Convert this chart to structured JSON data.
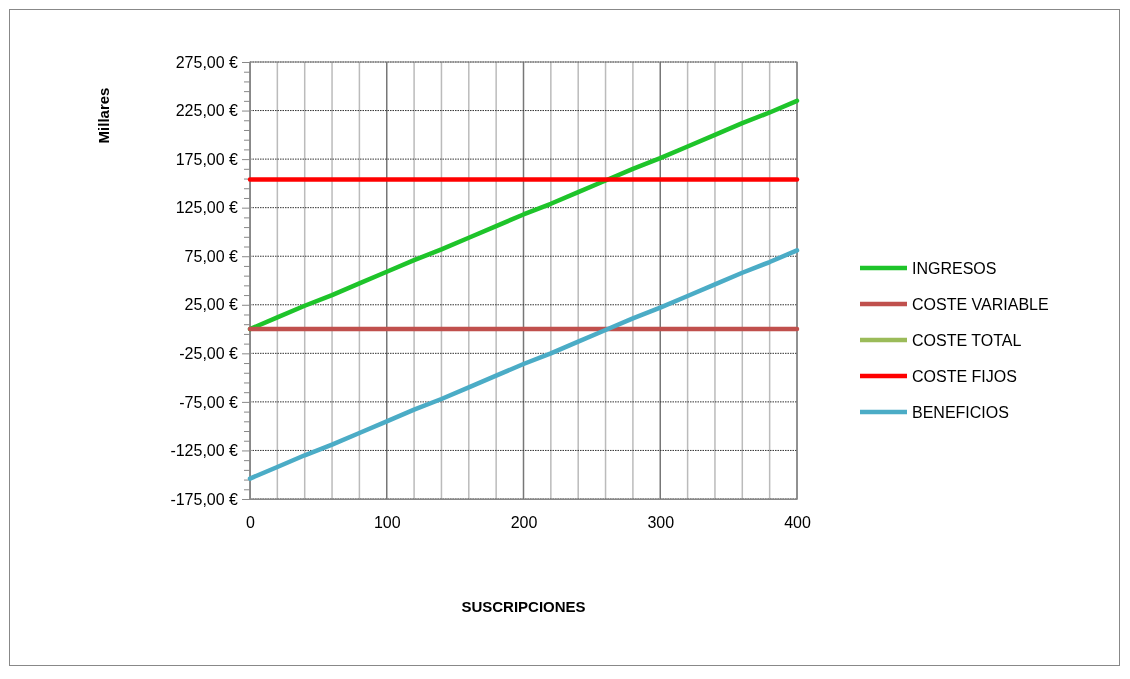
{
  "chart_data": {
    "type": "line",
    "xlabel": "SUSCRIPCIONES",
    "ylabel": "Millares",
    "x": [
      0,
      20,
      40,
      60,
      80,
      100,
      120,
      140,
      160,
      180,
      200,
      220,
      240,
      260,
      280,
      300,
      320,
      340,
      360,
      380,
      400
    ],
    "series": [
      {
        "name": "INGRESOS",
        "color": "#1ec42a",
        "values": [
          0,
          12,
          24,
          35,
          47,
          59,
          71,
          82,
          94,
          106,
          118,
          129,
          141,
          153,
          165,
          176,
          188,
          200,
          212,
          223,
          235
        ]
      },
      {
        "name": "COSTE VARIABLE",
        "color": "#c0504d",
        "values": [
          0,
          0,
          0,
          0,
          0,
          0,
          0,
          0,
          0,
          0,
          0,
          0,
          0,
          0,
          0,
          0,
          0,
          0,
          0,
          0,
          0
        ]
      },
      {
        "name": "COSTE TOTAL",
        "color": "#9bbb59",
        "values": [
          null,
          null,
          null,
          null,
          null,
          null,
          null,
          null,
          null,
          null,
          null,
          null,
          null,
          null,
          null,
          null,
          null,
          null,
          null,
          null,
          null
        ]
      },
      {
        "name": "COSTE FIJOS",
        "color": "#ff0000",
        "values": [
          154,
          154,
          154,
          154,
          154,
          154,
          154,
          154,
          154,
          154,
          154,
          154,
          154,
          154,
          154,
          154,
          154,
          154,
          154,
          154,
          154
        ]
      },
      {
        "name": "BENEFICIOS",
        "color": "#4bacc6",
        "values": [
          -154,
          -142,
          -130,
          -119,
          -107,
          -95,
          -83,
          -72,
          -60,
          -48,
          -36,
          -25,
          -13,
          -1,
          11,
          22,
          34,
          46,
          58,
          69,
          81
        ]
      }
    ],
    "xlim": [
      0,
      400
    ],
    "xticks": [
      0,
      {
        "value": 20,
        "label": null
      },
      {
        "value": 40,
        "label": null
      },
      {
        "value": 60,
        "label": null
      },
      {
        "value": 80,
        "label": null
      },
      100,
      {
        "value": 120,
        "label": null
      },
      {
        "value": 140,
        "label": null
      },
      {
        "value": 160,
        "label": null
      },
      {
        "value": 180,
        "label": null
      },
      200,
      {
        "value": 220,
        "label": null
      },
      {
        "value": 240,
        "label": null
      },
      {
        "value": 260,
        "label": null
      },
      {
        "value": 280,
        "label": null
      },
      300,
      {
        "value": 320,
        "label": null
      },
      {
        "value": 340,
        "label": null
      },
      {
        "value": 360,
        "label": null
      },
      {
        "value": 380,
        "label": null
      },
      400
    ],
    "ylim": [
      -175,
      275
    ],
    "yticks": [
      {
        "value": -175,
        "label": "-175,00 €"
      },
      {
        "value": -165,
        "label": null
      },
      {
        "value": -155,
        "label": null
      },
      {
        "value": -145,
        "label": null
      },
      {
        "value": -135,
        "label": null
      },
      {
        "value": -125,
        "label": "-125,00 €"
      },
      {
        "value": -115,
        "label": null
      },
      {
        "value": -105,
        "label": null
      },
      {
        "value": -95,
        "label": null
      },
      {
        "value": -85,
        "label": null
      },
      {
        "value": -75,
        "label": "-75,00 €"
      },
      {
        "value": -65,
        "label": null
      },
      {
        "value": -55,
        "label": null
      },
      {
        "value": -45,
        "label": null
      },
      {
        "value": -35,
        "label": null
      },
      {
        "value": -25,
        "label": "-25,00 €"
      },
      {
        "value": -15,
        "label": null
      },
      {
        "value": -5,
        "label": null
      },
      {
        "value": 5,
        "label": null
      },
      {
        "value": 15,
        "label": null
      },
      {
        "value": 25,
        "label": "25,00 €"
      },
      {
        "value": 35,
        "label": null
      },
      {
        "value": 45,
        "label": null
      },
      {
        "value": 55,
        "label": null
      },
      {
        "value": 65,
        "label": null
      },
      {
        "value": 75,
        "label": "75,00 €"
      },
      {
        "value": 85,
        "label": null
      },
      {
        "value": 95,
        "label": null
      },
      {
        "value": 105,
        "label": null
      },
      {
        "value": 115,
        "label": null
      },
      {
        "value": 125,
        "label": "125,00 €"
      },
      {
        "value": 135,
        "label": null
      },
      {
        "value": 145,
        "label": null
      },
      {
        "value": 155,
        "label": null
      },
      {
        "value": 165,
        "label": null
      },
      {
        "value": 175,
        "label": "175,00 €"
      },
      {
        "value": 185,
        "label": null
      },
      {
        "value": 195,
        "label": null
      },
      {
        "value": 205,
        "label": null
      },
      {
        "value": 215,
        "label": null
      },
      {
        "value": 225,
        "label": "225,00 €"
      },
      {
        "value": 235,
        "label": null
      },
      {
        "value": 245,
        "label": null
      },
      {
        "value": 255,
        "label": null
      },
      {
        "value": 265,
        "label": null
      },
      {
        "value": 275,
        "label": "275,00 €"
      }
    ],
    "grid": true,
    "legend": "right",
    "marker": "none",
    "line_style": "solid"
  }
}
